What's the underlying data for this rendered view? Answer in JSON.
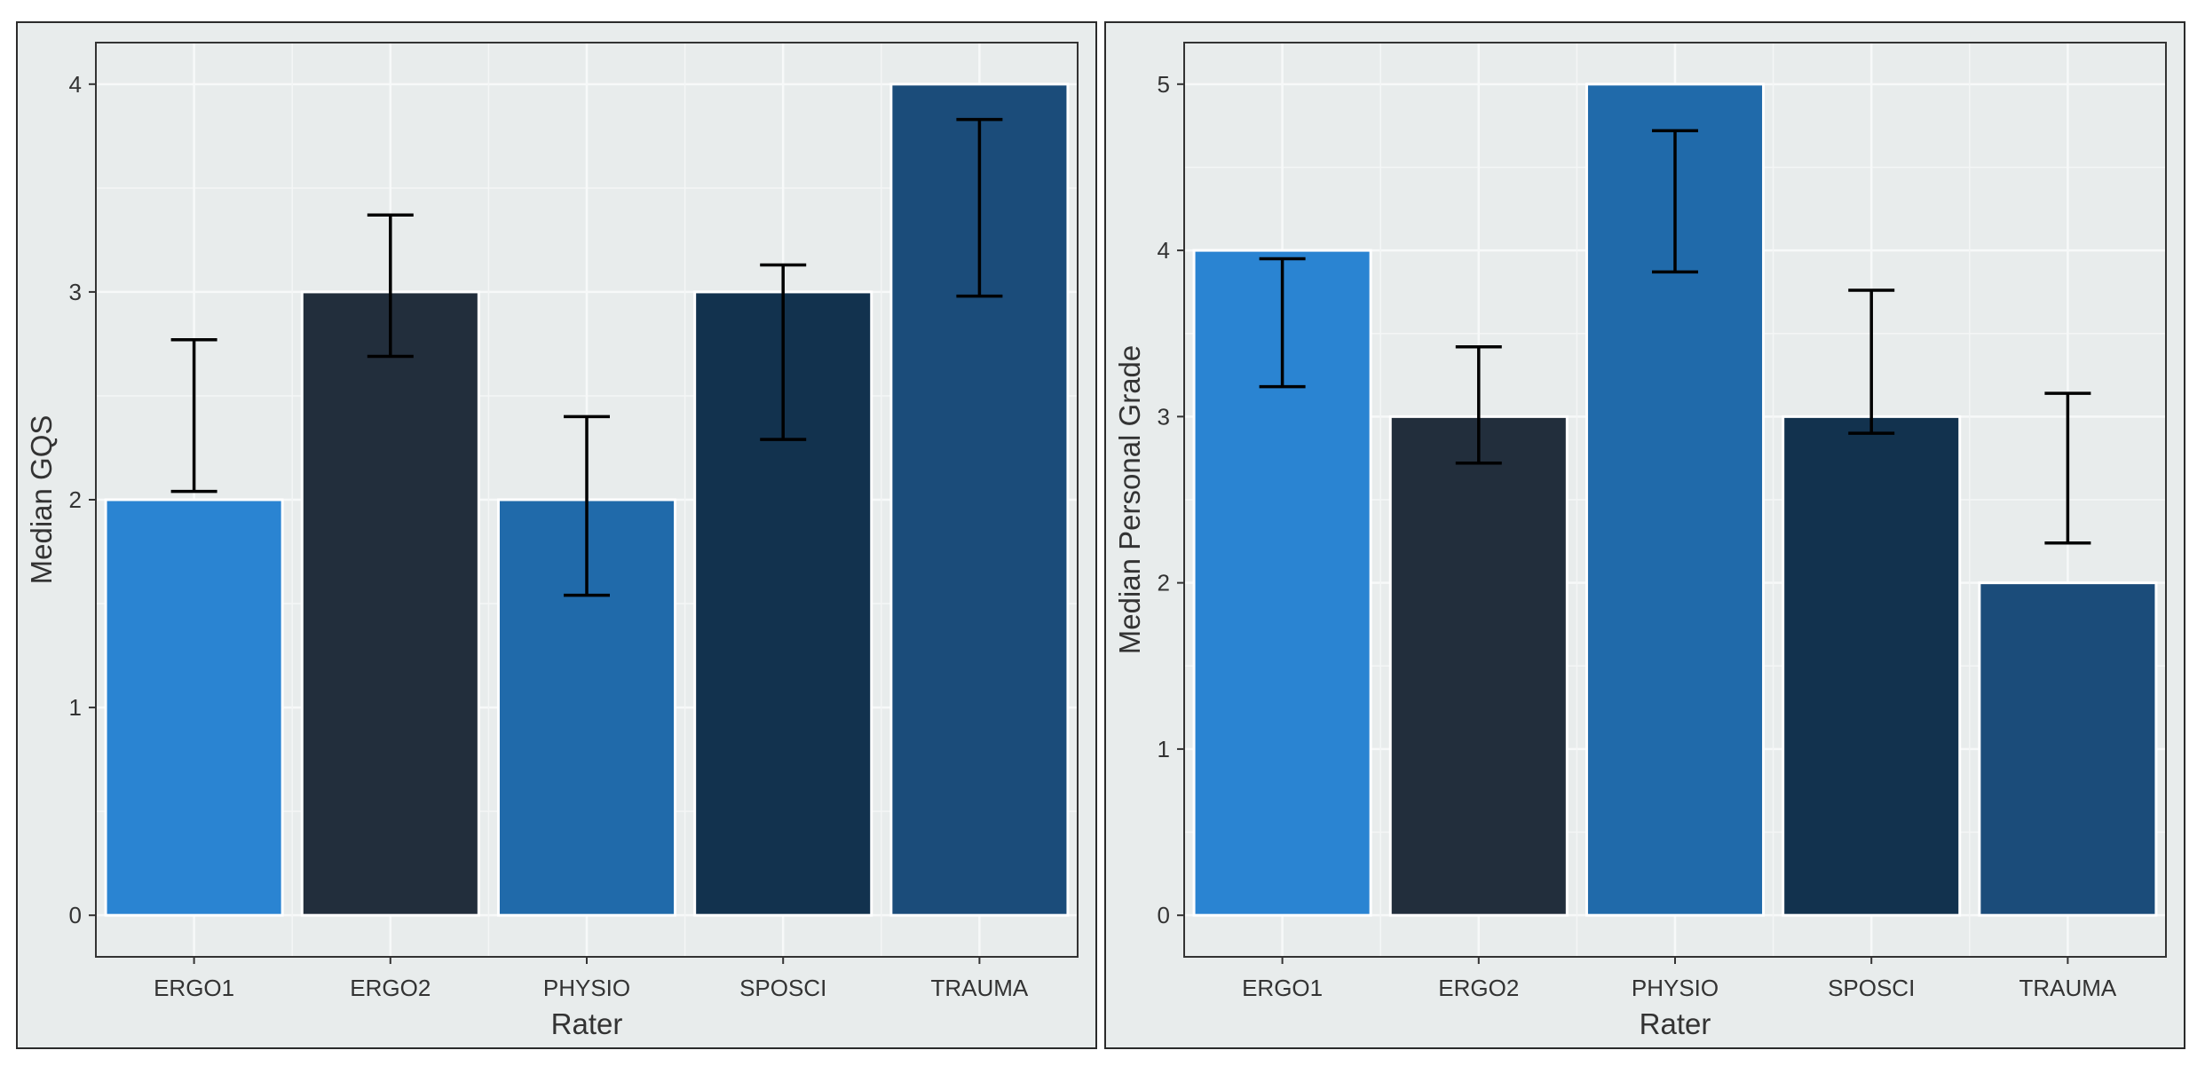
{
  "chart_data": [
    {
      "type": "bar",
      "categories": [
        "ERGO1",
        "ERGO2",
        "PHYSIO",
        "SPOSCI",
        "TRAUMA"
      ],
      "values": [
        2,
        3,
        2,
        3,
        4
      ],
      "error_low": [
        2.04,
        2.69,
        1.54,
        2.29,
        2.98
      ],
      "error_high": [
        2.77,
        3.37,
        2.4,
        3.13,
        3.83
      ],
      "colors": [
        "#2a84d2",
        "#222e3c",
        "#206aaa",
        "#12324e",
        "#1b4c7a"
      ],
      "xlabel": "Rater",
      "ylabel": "Median GQS",
      "ylim": [
        -0.2,
        4.2
      ],
      "yticks": [
        0,
        1,
        2,
        3,
        4
      ],
      "grid": true,
      "background": "#e8ecec"
    },
    {
      "type": "bar",
      "categories": [
        "ERGO1",
        "ERGO2",
        "PHYSIO",
        "SPOSCI",
        "TRAUMA"
      ],
      "values": [
        4,
        3,
        5,
        3,
        2
      ],
      "error_low": [
        3.18,
        2.72,
        3.87,
        2.9,
        2.24
      ],
      "error_high": [
        3.95,
        3.42,
        4.72,
        3.76,
        3.14
      ],
      "colors": [
        "#2a84d2",
        "#222e3c",
        "#206aaa",
        "#12324e",
        "#1b4c7a"
      ],
      "xlabel": "Rater",
      "ylabel": "Median Personal Grade",
      "ylim": [
        -0.25,
        5.25
      ],
      "yticks": [
        0,
        1,
        2,
        3,
        4,
        5
      ],
      "grid": true,
      "background": "#e8ecec"
    }
  ]
}
